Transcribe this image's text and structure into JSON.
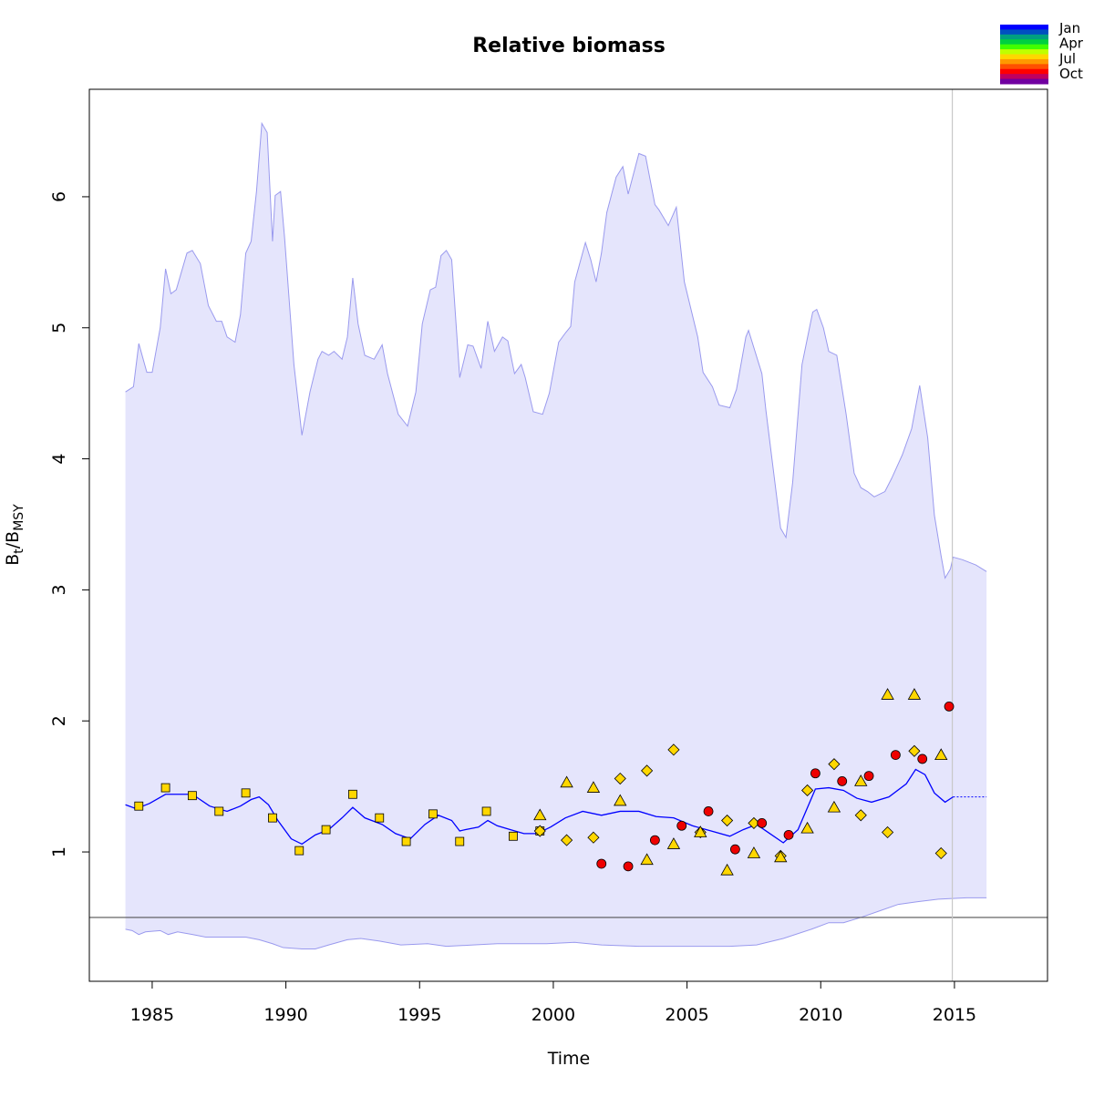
{
  "chart_data": {
    "type": "line",
    "title": "Relative biomass",
    "xlabel": "Time",
    "ylabel": [
      {
        "text": "B"
      },
      {
        "text": "t",
        "sub": true
      },
      {
        "text": "/B"
      },
      {
        "text": "MSY",
        "sub": true
      }
    ],
    "xlim": [
      1982.65,
      2018.48
    ],
    "ylim": [
      0.013,
      6.82
    ],
    "xticks": [
      1985,
      1990,
      1995,
      2000,
      2005,
      2010,
      2015
    ],
    "yticks": [
      1,
      2,
      3,
      4,
      5,
      6
    ],
    "band_color": "#e5e5fc",
    "band_edge": "#9a9aee",
    "upper": {
      "x": [
        1984.0,
        1984.3,
        1984.5,
        1984.8,
        1985.0,
        1985.3,
        1985.5,
        1985.7,
        1985.9,
        1986.3,
        1986.5,
        1986.8,
        1987.1,
        1987.4,
        1987.6,
        1987.8,
        1988.1,
        1988.3,
        1988.5,
        1988.7,
        1988.9,
        1989.1,
        1989.3,
        1989.5,
        1989.6,
        1989.8,
        1989.95,
        1990.3,
        1990.6,
        1990.9,
        1991.2,
        1991.35,
        1991.6,
        1991.8,
        1992.1,
        1992.3,
        1992.5,
        1992.7,
        1992.95,
        1993.3,
        1993.6,
        1993.8,
        1994.2,
        1994.55,
        1994.86,
        1995.1,
        1995.4,
        1995.6,
        1995.8,
        1996.0,
        1996.2,
        1996.5,
        1996.8,
        1997.0,
        1997.3,
        1997.55,
        1997.8,
        1998.1,
        1998.3,
        1998.55,
        1998.8,
        1998.95,
        1999.25,
        1999.6,
        1999.85,
        2000.2,
        2000.45,
        2000.65,
        2000.8,
        2001.2,
        2001.4,
        2001.6,
        2001.8,
        2002.0,
        2002.35,
        2002.6,
        2002.8,
        2003.2,
        2003.45,
        2003.8,
        2003.95,
        2004.3,
        2004.6,
        2004.9,
        2005.4,
        2005.6,
        2005.95,
        2006.2,
        2006.6,
        2006.85,
        2007.2,
        2007.3,
        2007.8,
        2007.95,
        2008.2,
        2008.5,
        2008.7,
        2008.95,
        2009.3,
        2009.7,
        2009.85,
        2010.1,
        2010.3,
        2010.6,
        2010.95,
        2011.25,
        2011.5,
        2011.75,
        2012.0,
        2012.4,
        2012.65,
        2013.05,
        2013.4,
        2013.7,
        2014.0,
        2014.25,
        2014.5,
        2014.65,
        2014.85,
        2014.95,
        2015.3,
        2015.8,
        2016.2
      ],
      "values": [
        4.51,
        4.55,
        4.88,
        4.66,
        4.66,
        5.0,
        5.45,
        5.26,
        5.29,
        5.57,
        5.59,
        5.49,
        5.17,
        5.05,
        5.05,
        4.93,
        4.89,
        5.1,
        5.57,
        5.66,
        6.04,
        6.56,
        6.49,
        5.66,
        6.01,
        6.04,
        5.69,
        4.72,
        4.18,
        4.51,
        4.76,
        4.82,
        4.79,
        4.82,
        4.76,
        4.93,
        5.38,
        5.03,
        4.79,
        4.76,
        4.87,
        4.65,
        4.34,
        4.25,
        4.51,
        5.03,
        5.29,
        5.31,
        5.55,
        5.59,
        5.52,
        4.62,
        4.87,
        4.86,
        4.69,
        5.05,
        4.82,
        4.93,
        4.9,
        4.65,
        4.72,
        4.62,
        4.36,
        4.34,
        4.5,
        4.89,
        4.96,
        5.01,
        5.35,
        5.65,
        5.52,
        5.35,
        5.57,
        5.88,
        6.15,
        6.23,
        6.02,
        6.33,
        6.31,
        5.94,
        5.9,
        5.78,
        5.92,
        5.35,
        4.93,
        4.66,
        4.55,
        4.41,
        4.39,
        4.53,
        4.93,
        4.98,
        4.65,
        4.37,
        3.96,
        3.47,
        3.4,
        3.82,
        4.72,
        5.12,
        5.14,
        5.0,
        4.82,
        4.79,
        4.34,
        3.89,
        3.78,
        3.75,
        3.71,
        3.75,
        3.85,
        4.03,
        4.23,
        4.56,
        4.16,
        3.57,
        3.26,
        3.09,
        3.16,
        3.25,
        3.23,
        3.19,
        3.14
      ]
    },
    "lower": {
      "x": [
        1984.0,
        1984.25,
        1984.5,
        1984.75,
        1985.3,
        1985.6,
        1985.95,
        1986.5,
        1987.0,
        1987.7,
        1988.5,
        1989.0,
        1989.5,
        1989.9,
        1990.6,
        1991.1,
        1991.6,
        1992.3,
        1992.8,
        1993.5,
        1994.3,
        1995.3,
        1996.0,
        1997.0,
        1997.9,
        1998.7,
        1999.75,
        2000.8,
        2001.8,
        2003.2,
        2004.5,
        2005.6,
        2006.6,
        2007.6,
        2008.6,
        2009.65,
        2010.3,
        2010.85,
        2011.5,
        2012.2,
        2012.9,
        2013.6,
        2014.4,
        2015.45,
        2016.2
      ],
      "values": [
        0.41,
        0.4,
        0.37,
        0.39,
        0.4,
        0.37,
        0.39,
        0.37,
        0.35,
        0.35,
        0.35,
        0.33,
        0.3,
        0.27,
        0.26,
        0.26,
        0.29,
        0.33,
        0.34,
        0.32,
        0.29,
        0.3,
        0.28,
        0.29,
        0.3,
        0.3,
        0.3,
        0.31,
        0.29,
        0.28,
        0.28,
        0.28,
        0.28,
        0.29,
        0.34,
        0.41,
        0.46,
        0.46,
        0.5,
        0.55,
        0.6,
        0.62,
        0.64,
        0.65,
        0.65
      ]
    },
    "median": {
      "color": "#0000ff",
      "x": [
        1984.0,
        1984.4,
        1984.9,
        1985.5,
        1985.95,
        1986.5,
        1987.15,
        1987.8,
        1988.3,
        1988.7,
        1989.0,
        1989.35,
        1989.7,
        1990.2,
        1990.6,
        1991.1,
        1991.6,
        1992.1,
        1992.5,
        1992.95,
        1993.6,
        1994.1,
        1994.65,
        1995.2,
        1995.7,
        1996.2,
        1996.5,
        1996.7,
        1997.2,
        1997.55,
        1997.9,
        1998.4,
        1998.9,
        1999.4,
        1999.9,
        2000.45,
        2001.1,
        2001.8,
        2002.5,
        2003.2,
        2003.85,
        2004.5,
        2005.2,
        2005.9,
        2006.6,
        2007.1,
        2007.6,
        2008.1,
        2008.6,
        2009.15,
        2009.8,
        2010.3,
        2010.85,
        2011.35,
        2011.9,
        2012.55,
        2013.2,
        2013.55,
        2013.9,
        2014.25,
        2014.65,
        2014.95
      ],
      "values": [
        1.36,
        1.33,
        1.37,
        1.44,
        1.44,
        1.44,
        1.35,
        1.31,
        1.35,
        1.4,
        1.42,
        1.36,
        1.24,
        1.1,
        1.06,
        1.13,
        1.17,
        1.26,
        1.34,
        1.26,
        1.21,
        1.14,
        1.1,
        1.21,
        1.28,
        1.24,
        1.16,
        1.17,
        1.19,
        1.24,
        1.2,
        1.17,
        1.14,
        1.14,
        1.19,
        1.26,
        1.31,
        1.28,
        1.31,
        1.31,
        1.27,
        1.26,
        1.2,
        1.16,
        1.12,
        1.17,
        1.21,
        1.14,
        1.07,
        1.17,
        1.48,
        1.49,
        1.47,
        1.41,
        1.38,
        1.42,
        1.52,
        1.63,
        1.59,
        1.45,
        1.38,
        1.42
      ]
    },
    "forecast": {
      "color": "#0000ff",
      "x": [
        2014.95,
        2016.2
      ],
      "values": [
        1.42,
        1.42
      ]
    },
    "points": [
      {
        "shape": "square",
        "color": "#ffd700",
        "x": [
          1984.5,
          1985.5,
          1986.5,
          1987.5,
          1988.5,
          1989.5,
          1990.5,
          1991.5,
          1992.5,
          1993.5,
          1994.5,
          1995.5,
          1996.5,
          1997.5,
          1998.5,
          1999.5
        ],
        "values": [
          1.35,
          1.49,
          1.43,
          1.31,
          1.45,
          1.26,
          1.01,
          1.17,
          1.44,
          1.26,
          1.08,
          1.29,
          1.08,
          1.31,
          1.12,
          1.16
        ]
      },
      {
        "shape": "diamond",
        "color": "#ffd700",
        "x": [
          1999.5,
          2000.5,
          2001.5,
          2002.5,
          2003.5,
          2004.5,
          2005.5,
          2006.5,
          2007.5,
          2008.5,
          2009.5,
          2010.5,
          2011.5,
          2012.5,
          2013.5,
          2014.5
        ],
        "values": [
          1.16,
          1.09,
          1.11,
          1.56,
          1.62,
          1.78,
          1.15,
          1.24,
          1.22,
          0.97,
          1.47,
          1.67,
          1.28,
          1.15,
          1.77,
          0.99
        ]
      },
      {
        "shape": "triangle",
        "color": "#ffd700",
        "x": [
          1999.5,
          2000.5,
          2001.5,
          2002.5,
          2003.5,
          2004.5,
          2005.5,
          2006.5,
          2007.5,
          2008.5,
          2009.5,
          2010.5,
          2011.5,
          2012.5,
          2013.5,
          2014.5
        ],
        "values": [
          1.28,
          1.53,
          1.49,
          1.39,
          0.94,
          1.06,
          1.15,
          0.86,
          0.99,
          0.96,
          1.18,
          1.34,
          1.54,
          2.2,
          2.2,
          1.74
        ]
      },
      {
        "shape": "circle",
        "color": "#ee0000",
        "x": [
          2001.8,
          2002.8,
          2003.8,
          2004.8,
          2005.8,
          2006.8,
          2007.8,
          2008.8,
          2009.8,
          2010.8,
          2011.8,
          2012.8,
          2013.8,
          2014.8
        ],
        "values": [
          0.91,
          0.89,
          1.09,
          1.2,
          1.31,
          1.02,
          1.22,
          1.13,
          1.6,
          1.54,
          1.58,
          1.74,
          1.71,
          2.11
        ]
      }
    ],
    "hline": 0.5,
    "vline": 2014.92,
    "colorbar": {
      "colors": [
        "#0000ff",
        "#0050c0",
        "#00a080",
        "#00d040",
        "#40ff00",
        "#c0ff00",
        "#ffd700",
        "#ff9900",
        "#ff5000",
        "#ff0000",
        "#c00060",
        "#7000a0"
      ],
      "labels": [
        "Jan",
        "Apr",
        "Jul",
        "Oct"
      ]
    }
  }
}
